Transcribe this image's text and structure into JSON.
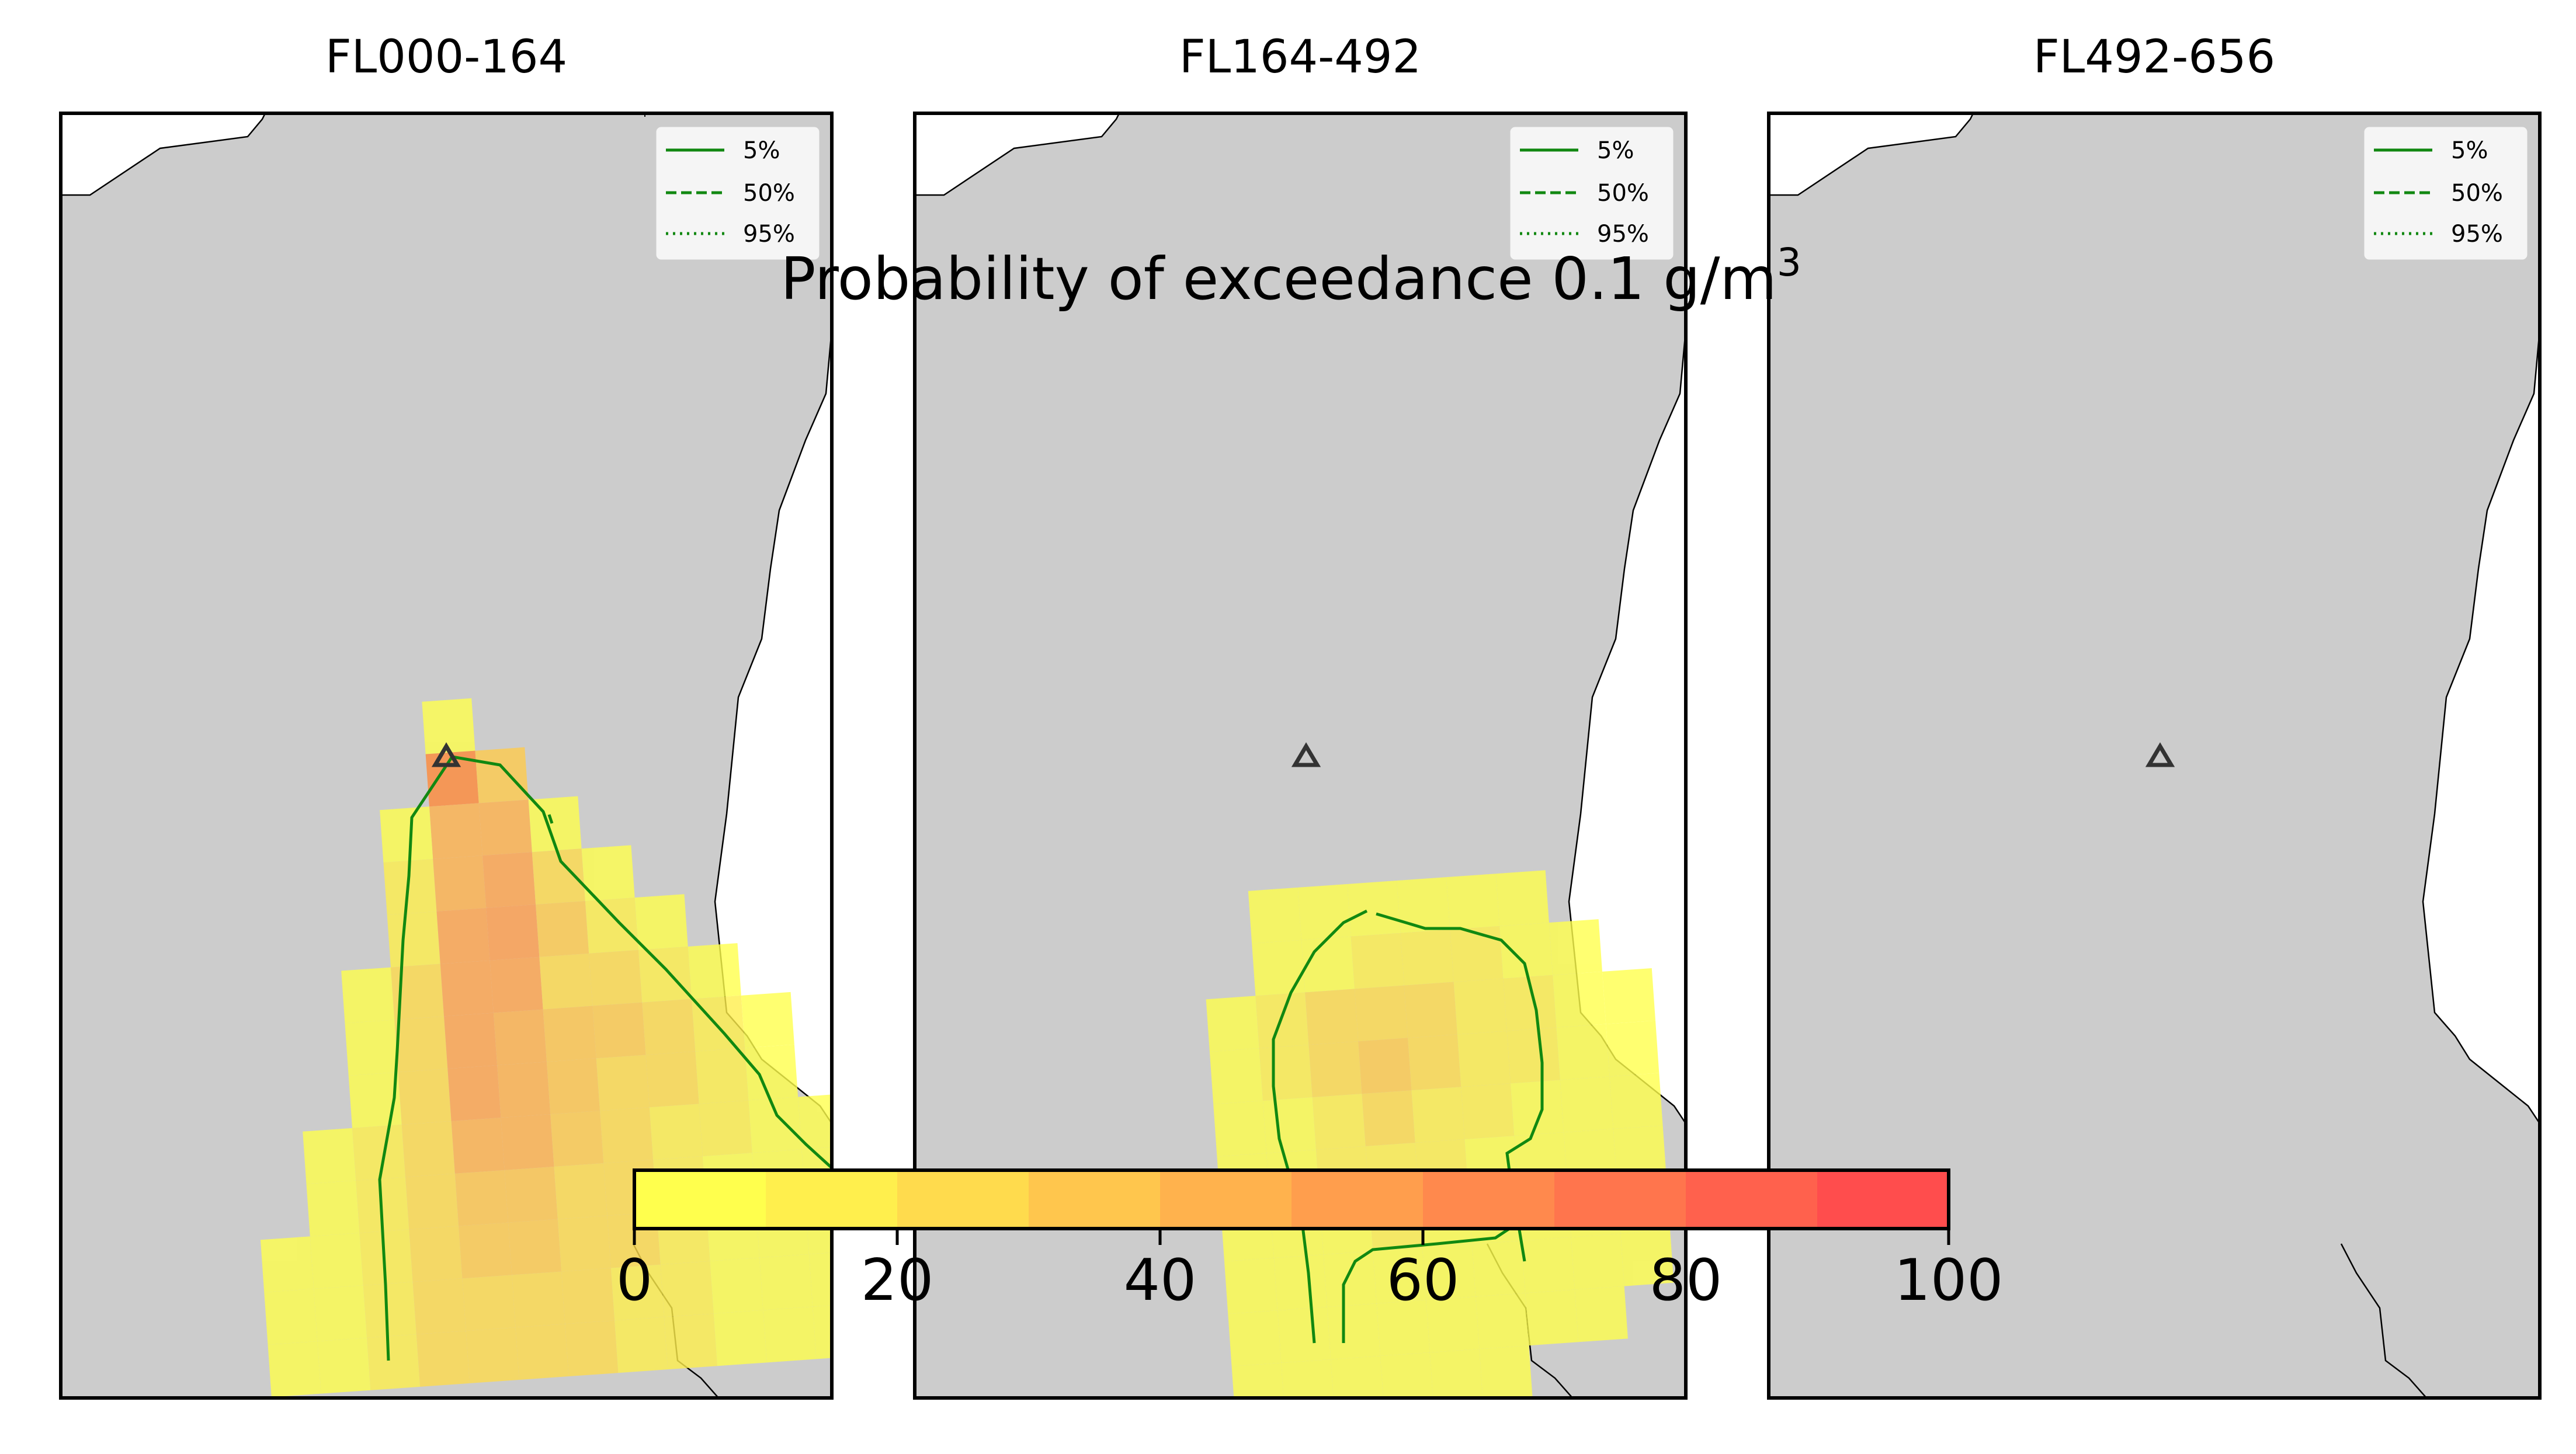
{
  "figure": {
    "suptitle_prefix": "Probability of exceedance 0.1 g/m",
    "suptitle_sup": "3"
  },
  "colors": {
    "land": "#cccccc",
    "sea": "#ffffff",
    "contour": "#118811",
    "vent": "#333333",
    "colormap": [
      "#ffff4d",
      "#ffef4d",
      "#ffdb4d",
      "#ffc64d",
      "#ffb24d",
      "#ff9e4d",
      "#ff894d",
      "#ff754d",
      "#ff614d",
      "#ff4d4d"
    ]
  },
  "legend": {
    "items": [
      {
        "label": "5%",
        "style": "solid"
      },
      {
        "label": "50%",
        "style": "dashed"
      },
      {
        "label": "95%",
        "style": "dotted"
      }
    ]
  },
  "colorbar": {
    "ticks": [
      "0",
      "20",
      "40",
      "60",
      "80",
      "100"
    ],
    "vmin": 0,
    "vmax": 100
  },
  "chart_data": [
    {
      "type": "heatmap",
      "title": "FL000-164",
      "description_units": "probability of exceedance (%)",
      "max_value_approx": 55,
      "contours": [
        "5%"
      ]
    },
    {
      "type": "heatmap",
      "title": "FL164-492",
      "description_units": "probability of exceedance (%)",
      "max_value_approx": 25,
      "contours": [
        "5%"
      ]
    },
    {
      "type": "heatmap",
      "title": "FL492-656",
      "description_units": "probability of exceedance (%)",
      "max_value_approx": 0,
      "contours": []
    }
  ]
}
